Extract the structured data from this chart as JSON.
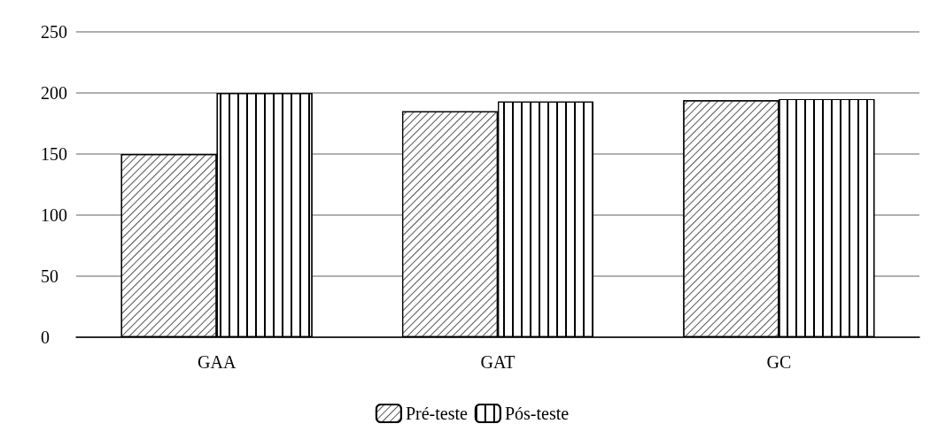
{
  "chart_data": {
    "type": "bar",
    "categories": [
      "GAA",
      "GAT",
      "GC"
    ],
    "series": [
      {
        "name": "Pré-teste",
        "color": "#ffffff",
        "values": [
          150,
          185,
          194
        ]
      },
      {
        "name": "Pós-teste",
        "color": "#ffffff",
        "values": [
          200,
          193,
          195
        ]
      }
    ],
    "ylim": [
      0,
      250
    ],
    "yticks": [
      0,
      50,
      100,
      150,
      200,
      250
    ],
    "grid": "y",
    "legend": "bottom"
  }
}
